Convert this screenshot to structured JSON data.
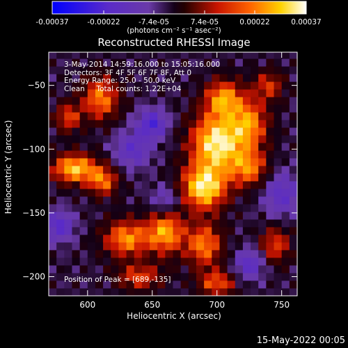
{
  "colorbar": {
    "tick_labels": [
      "-0.00037",
      "-0.00022",
      "-7.4e-05",
      "7.4e-05",
      "0.00022",
      "0.00037"
    ],
    "tick_values": [
      -0.00037,
      -0.00022,
      -7.4e-05,
      7.4e-05,
      0.00022,
      0.00037
    ],
    "range": [
      -0.00037,
      0.00037
    ],
    "unit_label": "(photons cm⁻² s⁻¹ asec⁻²)",
    "colormap": "blue-purple-black-red-orange-yellow-white"
  },
  "info": {
    "time_range": "3-May-2014 14:59:16.000 to 15:05:16.000",
    "detectors": "Detectors: 3F 4F 5F 6F 7F 8F, Att 0",
    "energy": "Energy Range: 25.0 - 50.0 keV",
    "method": "Clean     Total counts: 1.22E+04",
    "peak": "Position of Peak = [689,-135]"
  },
  "footer": {
    "date": "15-May-2022 00:05"
  },
  "chart_data": {
    "type": "heatmap",
    "title": "Reconstructed RHESSI Image",
    "xlabel": "Heliocentric X (arcsec)",
    "ylabel": "Heliocentric Y (arcsec)",
    "xlim": [
      570,
      762
    ],
    "ylim": [
      -215,
      -24
    ],
    "x_ticks": [
      600,
      650,
      700,
      750
    ],
    "y_ticks": [
      -50,
      -100,
      -150,
      -200
    ],
    "x_tick_labels": [
      "600",
      "650",
      "700",
      "750"
    ],
    "y_tick_labels": [
      "−50",
      "−100",
      "−150",
      "−200"
    ],
    "peak_position": [
      689,
      -135
    ],
    "grid_step": 6,
    "sources": [
      {
        "x": 700,
        "y": -95,
        "sx": 14,
        "sy": 16,
        "a": 1.0
      },
      {
        "x": 690,
        "y": -130,
        "sx": 12,
        "sy": 12,
        "a": 0.95
      },
      {
        "x": 705,
        "y": -60,
        "sx": 10,
        "sy": 10,
        "a": 0.7
      },
      {
        "x": 725,
        "y": -80,
        "sx": 10,
        "sy": 14,
        "a": 0.65
      },
      {
        "x": 725,
        "y": -115,
        "sx": 10,
        "sy": 10,
        "a": 0.6
      },
      {
        "x": 590,
        "y": -115,
        "sx": 12,
        "sy": 8,
        "a": 0.85
      },
      {
        "x": 612,
        "y": -125,
        "sx": 8,
        "sy": 8,
        "a": 0.6
      },
      {
        "x": 610,
        "y": -60,
        "sx": 10,
        "sy": 12,
        "a": 0.65
      },
      {
        "x": 585,
        "y": -75,
        "sx": 7,
        "sy": 8,
        "a": 0.5
      },
      {
        "x": 630,
        "y": -170,
        "sx": 12,
        "sy": 10,
        "a": 0.7
      },
      {
        "x": 660,
        "y": -165,
        "sx": 10,
        "sy": 12,
        "a": 0.75
      },
      {
        "x": 690,
        "y": -175,
        "sx": 10,
        "sy": 12,
        "a": 0.65
      },
      {
        "x": 640,
        "y": -200,
        "sx": 12,
        "sy": 7,
        "a": 0.5
      },
      {
        "x": 700,
        "y": -205,
        "sx": 10,
        "sy": 7,
        "a": 0.55
      },
      {
        "x": 745,
        "y": -175,
        "sx": 8,
        "sy": 10,
        "a": 0.5
      },
      {
        "x": 740,
        "y": -50,
        "sx": 8,
        "sy": 8,
        "a": 0.45
      },
      {
        "x": 650,
        "y": -80,
        "sx": 8,
        "sy": 8,
        "a": -0.6
      },
      {
        "x": 578,
        "y": -160,
        "sx": 8,
        "sy": 8,
        "a": -0.55
      },
      {
        "x": 725,
        "y": -190,
        "sx": 8,
        "sy": 8,
        "a": -0.5
      },
      {
        "x": 635,
        "y": -100,
        "sx": 10,
        "sy": 10,
        "a": -0.45
      },
      {
        "x": 750,
        "y": -135,
        "sx": 10,
        "sy": 12,
        "a": -0.45
      },
      {
        "x": 660,
        "y": -140,
        "sx": 8,
        "sy": 8,
        "a": -0.35
      }
    ]
  }
}
